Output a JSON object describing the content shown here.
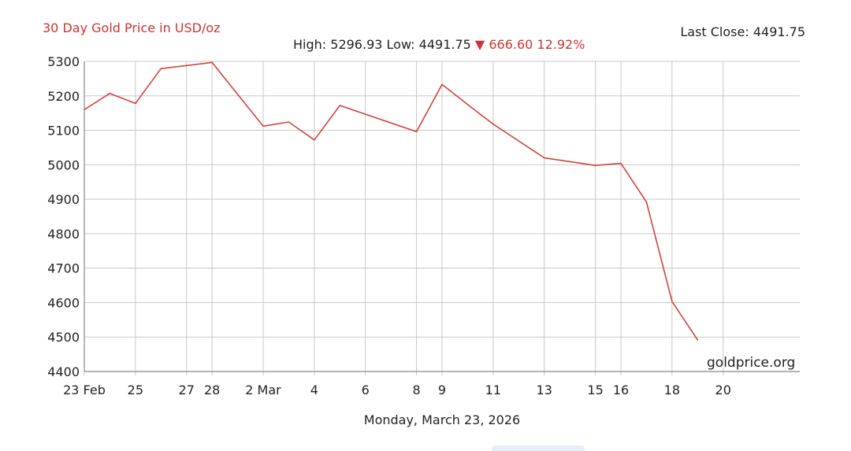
{
  "header": {
    "title": "30 Day Gold Price in USD/oz",
    "last_close_label": "Last Close:",
    "last_close_value": "4491.75",
    "high_label": "High:",
    "high_value": "5296.93",
    "low_label": "Low:",
    "low_value": "4491.75",
    "change_arrow": "▼",
    "change_value": "666.60",
    "change_pct": "12.92%"
  },
  "footer": {
    "date": "Monday, March 23, 2026",
    "watermark": "goldprice.org"
  },
  "colors": {
    "line": "#d0443a",
    "accent_text": "#cc3333",
    "grid": "#c8c8c8",
    "axis": "#888888"
  },
  "chart_data": {
    "type": "line",
    "title": "30 Day Gold Price in USD/oz",
    "xlabel": "",
    "ylabel": "",
    "ylim": [
      4400,
      5300
    ],
    "yticks": [
      4400,
      4500,
      4600,
      4700,
      4800,
      4900,
      5000,
      5100,
      5200,
      5300
    ],
    "xlim": [
      "2026-02-23",
      "2026-03-23"
    ],
    "xticks": [
      {
        "date": "2026-02-23",
        "label": "23 Feb"
      },
      {
        "date": "2026-02-25",
        "label": "25"
      },
      {
        "date": "2026-02-27",
        "label": "27"
      },
      {
        "date": "2026-02-28",
        "label": "28"
      },
      {
        "date": "2026-03-02",
        "label": "2 Mar"
      },
      {
        "date": "2026-03-04",
        "label": "4"
      },
      {
        "date": "2026-03-06",
        "label": "6"
      },
      {
        "date": "2026-03-08",
        "label": "8"
      },
      {
        "date": "2026-03-09",
        "label": "9"
      },
      {
        "date": "2026-03-11",
        "label": "11"
      },
      {
        "date": "2026-03-13",
        "label": "13"
      },
      {
        "date": "2026-03-15",
        "label": "15"
      },
      {
        "date": "2026-03-16",
        "label": "16"
      },
      {
        "date": "2026-03-18",
        "label": "18"
      },
      {
        "date": "2026-03-20",
        "label": "20"
      }
    ],
    "grid": true,
    "series": [
      {
        "name": "",
        "x": [
          "2026-02-23",
          "2026-02-24",
          "2026-02-25",
          "2026-02-26",
          "2026-02-28",
          "2026-03-02",
          "2026-03-03",
          "2026-03-04",
          "2026-03-05",
          "2026-03-08",
          "2026-03-09",
          "2026-03-10",
          "2026-03-11",
          "2026-03-13",
          "2026-03-15",
          "2026-03-16",
          "2026-03-17",
          "2026-03-18",
          "2026-03-19"
        ],
        "values": [
          5160,
          5207,
          5178,
          5279,
          5296.93,
          5112,
          5124,
          5072,
          5172,
          5096,
          5233,
          5175,
          5118,
          5020,
          4998,
          5004,
          4892,
          4603,
          4491.75
        ]
      }
    ]
  }
}
